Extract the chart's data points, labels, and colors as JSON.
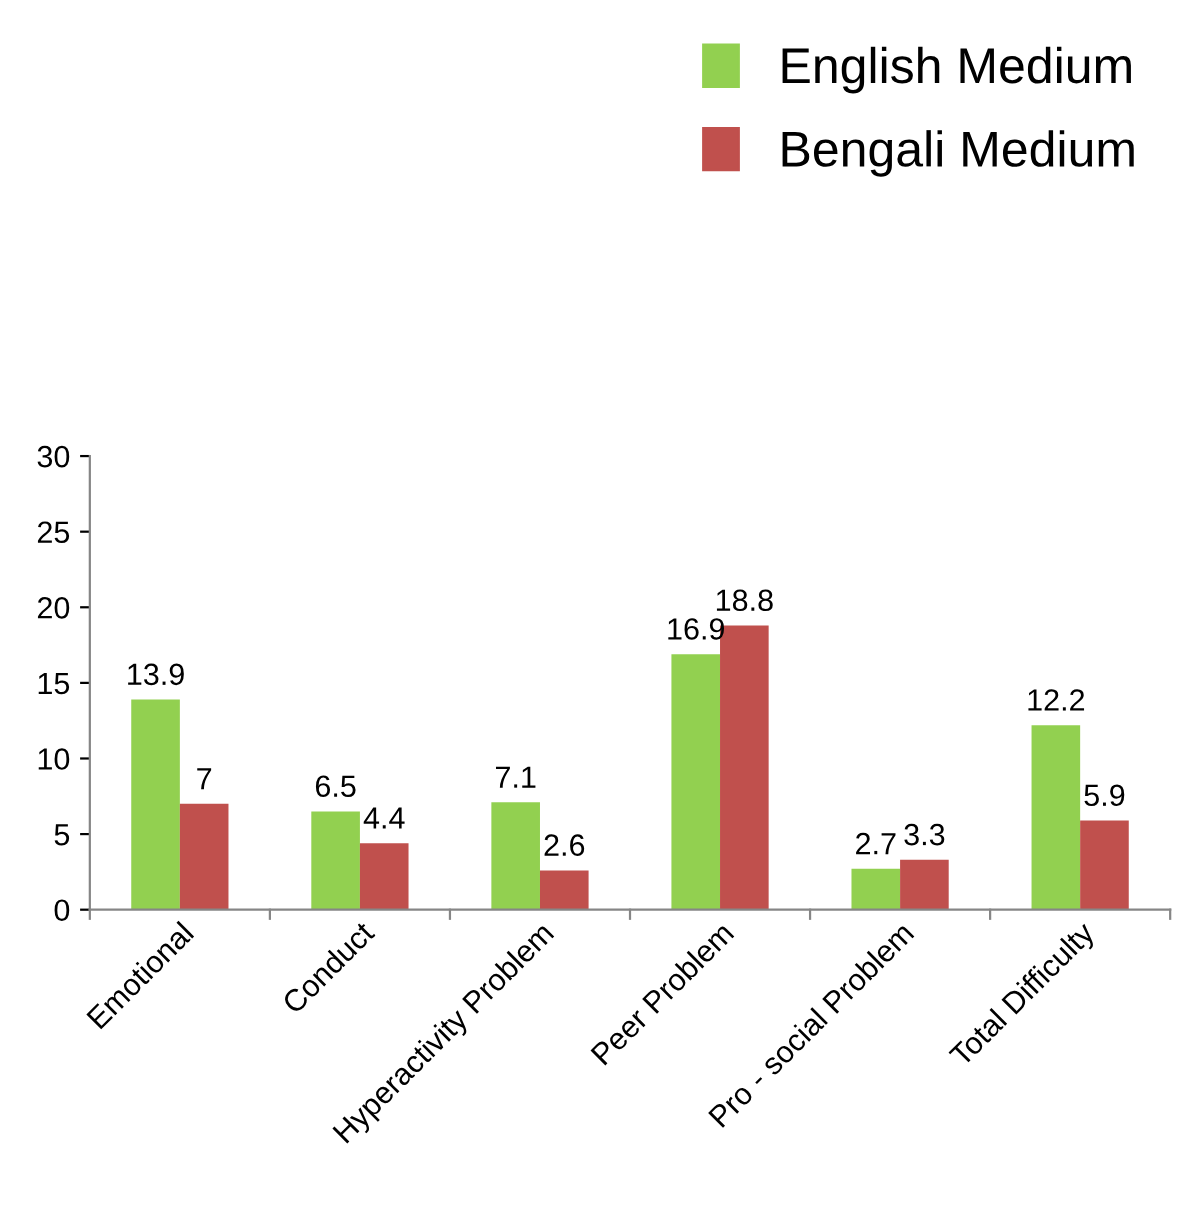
{
  "chart_data": {
    "type": "bar",
    "categories": [
      "Emotional",
      "Conduct",
      "Hyperactivity Problem",
      "Peer Problem",
      "Pro - social Problem",
      "Total Difficulty"
    ],
    "series": [
      {
        "name": "English Medium",
        "color": "#92d050",
        "values": [
          13.9,
          6.5,
          7.1,
          16.9,
          2.7,
          12.2
        ]
      },
      {
        "name": "Bengali Medium",
        "color": "#c0504d",
        "values": [
          7,
          4.4,
          2.6,
          18.8,
          3.3,
          5.9
        ]
      }
    ],
    "ylim": [
      0,
      30
    ],
    "yticks": [
      0,
      5,
      10,
      15,
      20,
      25,
      30
    ],
    "grid": false,
    "legend": "top right",
    "data_labels": true
  }
}
